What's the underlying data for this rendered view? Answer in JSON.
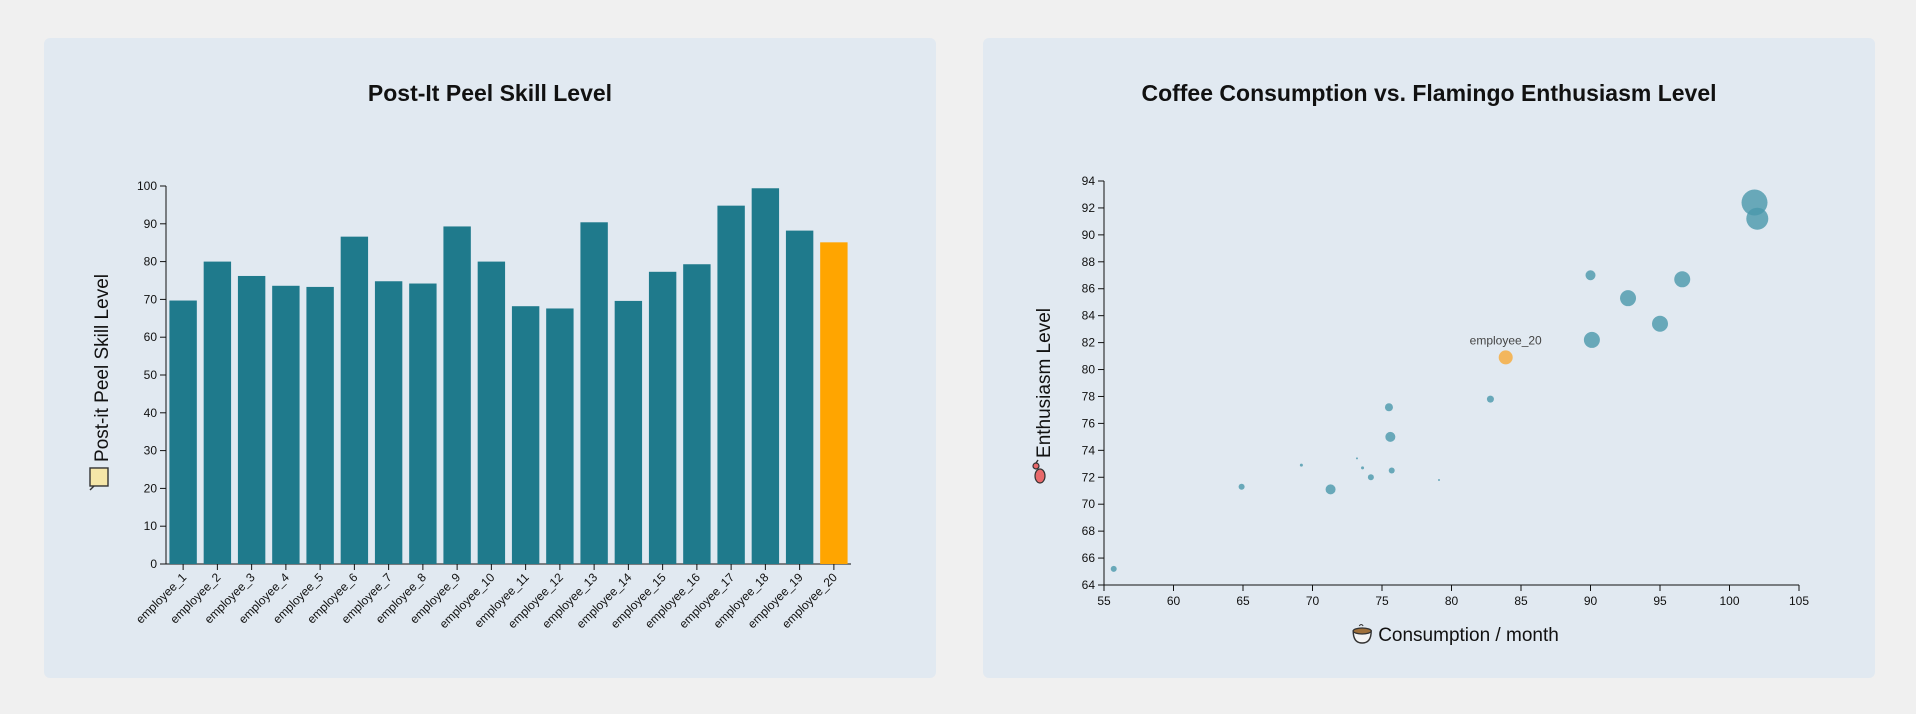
{
  "chart_data": [
    {
      "type": "bar",
      "title": "Post-It Peel Skill Level",
      "ylabel": "Post-it Peel Skill Level",
      "ylabel_icon": "sticky-note-icon",
      "ylim": [
        0,
        100
      ],
      "yticks": [
        0,
        10,
        20,
        30,
        40,
        50,
        60,
        70,
        80,
        90,
        100
      ],
      "categories": [
        "employee_1",
        "employee_2",
        "employee_3",
        "employee_4",
        "employee_5",
        "employee_6",
        "employee_7",
        "employee_8",
        "employee_9",
        "employee_10",
        "employee_11",
        "employee_12",
        "employee_13",
        "employee_14",
        "employee_15",
        "employee_16",
        "employee_17",
        "employee_18",
        "employee_19",
        "employee_20"
      ],
      "values": [
        69.7,
        80.0,
        76.2,
        73.6,
        73.3,
        86.6,
        74.8,
        74.2,
        89.3,
        80.0,
        68.2,
        67.6,
        90.4,
        69.6,
        77.3,
        79.3,
        94.8,
        99.4,
        88.2,
        85.1
      ],
      "highlight": "employee_20",
      "bar_color": "#1f7a8c",
      "highlight_color": "#ffa500",
      "grid": false
    },
    {
      "type": "scatter",
      "title": "Coffee Consumption vs. Flamingo Enthusiasm Level",
      "xlabel": "Consumption / month",
      "xlabel_icon": "coffee-cup-icon",
      "ylabel": "Enthusiasm Level",
      "ylabel_icon": "flamingo-icon",
      "xlim": [
        55,
        105
      ],
      "ylim": [
        64,
        94
      ],
      "xticks": [
        55,
        60,
        65,
        70,
        75,
        80,
        85,
        90,
        95,
        100,
        105
      ],
      "yticks": [
        64,
        66,
        68,
        70,
        72,
        74,
        76,
        78,
        80,
        82,
        84,
        86,
        88,
        90,
        92,
        94
      ],
      "point_color": "#4a97ab",
      "highlight_color": "#f5b04b",
      "highlight_label": "employee_20",
      "points": [
        {
          "x": 55.7,
          "y": 65.2,
          "size": 3
        },
        {
          "x": 64.9,
          "y": 71.3,
          "size": 3
        },
        {
          "x": 69.2,
          "y": 72.9,
          "size": 1.5
        },
        {
          "x": 71.3,
          "y": 71.1,
          "size": 5
        },
        {
          "x": 73.2,
          "y": 73.4,
          "size": 1
        },
        {
          "x": 73.6,
          "y": 72.7,
          "size": 1.5
        },
        {
          "x": 74.2,
          "y": 72.0,
          "size": 3
        },
        {
          "x": 75.5,
          "y": 77.2,
          "size": 4
        },
        {
          "x": 75.6,
          "y": 75.0,
          "size": 5
        },
        {
          "x": 75.7,
          "y": 72.5,
          "size": 3
        },
        {
          "x": 79.1,
          "y": 71.8,
          "size": 1
        },
        {
          "x": 82.8,
          "y": 77.8,
          "size": 3.5
        },
        {
          "x": 90.0,
          "y": 87.0,
          "size": 5
        },
        {
          "x": 90.1,
          "y": 82.2,
          "size": 8
        },
        {
          "x": 92.7,
          "y": 85.3,
          "size": 8
        },
        {
          "x": 95.0,
          "y": 83.4,
          "size": 8
        },
        {
          "x": 96.6,
          "y": 86.7,
          "size": 8
        },
        {
          "x": 101.8,
          "y": 92.4,
          "size": 13
        },
        {
          "x": 102.0,
          "y": 91.2,
          "size": 11
        },
        {
          "x": 83.9,
          "y": 80.9,
          "size": 7,
          "label": "employee_20",
          "highlight": true
        }
      ]
    }
  ]
}
